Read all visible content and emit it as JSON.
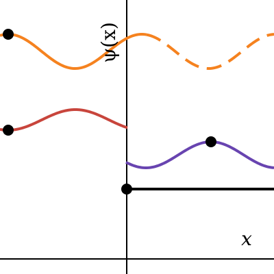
{
  "axis_labels": {
    "y": "ψ(x)",
    "x": "x"
  }
}
